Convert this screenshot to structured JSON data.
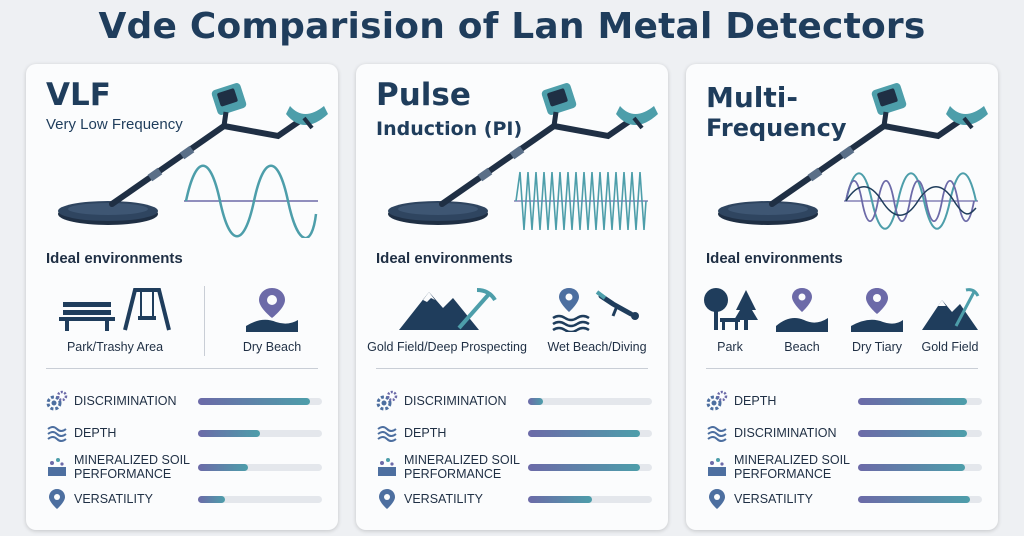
{
  "title": "Vde Comparision of Lan Metal Detectors",
  "colors": {
    "navy": "#1f3d5c",
    "teal": "#4d9eaa",
    "purple": "#6c6aa8",
    "track": "#e4e7ec"
  },
  "cards": [
    {
      "title": "VLF",
      "subtitle": "Very Low Frequency",
      "wave": "sine",
      "ideal_heading": "Ideal environments",
      "environments": [
        {
          "icon": "bench-swing-icon",
          "label": "Park/Trashy Area"
        },
        {
          "icon": "beach-pin-icon",
          "label": "Dry Beach"
        }
      ],
      "metrics": [
        {
          "icon": "gears-icon",
          "label": "DISCRIMINATION",
          "value": 0.9
        },
        {
          "icon": "waves-icon",
          "label": "DEPTH",
          "value": 0.5
        },
        {
          "icon": "soil-icon",
          "label": "MINERALIZED SOIL PERFORMANCE",
          "line1": "MINERALIZED SOIL",
          "line2": "PERFORMANCE",
          "value": 0.4
        },
        {
          "icon": "pin-icon",
          "label": "VERSATILITY",
          "value": 0.22
        }
      ]
    },
    {
      "title": "Pulse",
      "subtitle": "Induction (PI)",
      "wave": "pulse",
      "ideal_heading": "Ideal environments",
      "environments": [
        {
          "icon": "mountain-pick-icon",
          "label": "Gold Field/Deep Prospecting"
        },
        {
          "icon": "diver-pin-icon",
          "label": "Wet Beach/Diving"
        }
      ],
      "metrics": [
        {
          "icon": "gears-icon",
          "label": "DISCRIMINATION",
          "value": 0.12
        },
        {
          "icon": "waves-icon",
          "label": "DEPTH",
          "value": 0.9
        },
        {
          "icon": "soil-icon",
          "label": "MINERALIZED SOIL PERFORMANCE",
          "line1": "MINERALIZED SOIL",
          "line2": "PERFORMANCE",
          "value": 0.9
        },
        {
          "icon": "pin-icon",
          "label": "VERSATILITY",
          "value": 0.52
        }
      ]
    },
    {
      "title": "Multi-",
      "subtitle": "Frequency",
      "wave": "multi",
      "ideal_heading": "Ideal environments",
      "environments": [
        {
          "icon": "park-icon",
          "label": "Park"
        },
        {
          "icon": "beach-icon",
          "label": "Beach"
        },
        {
          "icon": "dry-pin-icon",
          "label": "Dry Tiary"
        },
        {
          "icon": "gold-field-icon",
          "label": "Gold Field"
        }
      ],
      "metrics": [
        {
          "icon": "gears-icon",
          "label": "DEPTH",
          "value": 0.88
        },
        {
          "icon": "waves-icon",
          "label": "DISCRIMINATION",
          "value": 0.88
        },
        {
          "icon": "soil-icon",
          "label": "MINERALIZED SOIL PERFORMANCE",
          "line1": "MINERALIZED SOIL",
          "line2": "PERFORMANCE",
          "value": 0.86
        },
        {
          "icon": "pin-icon",
          "label": "VERSATILITY",
          "value": 0.9
        }
      ]
    }
  ]
}
